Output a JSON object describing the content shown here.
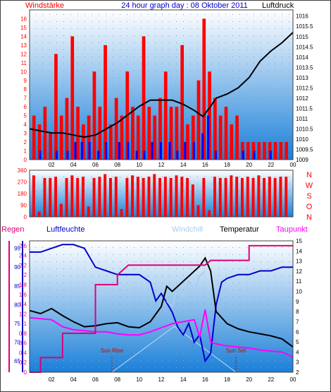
{
  "page_title": "24 hour graph day : 08 Oktober 2011",
  "colors": {
    "frame": "#404040",
    "wind_bar": "#ff0000",
    "gust_bar": "#0000ff",
    "pressure": "#000000",
    "humidity": "#0000cc",
    "windchill": "#aaccee",
    "temperature": "#000000",
    "dewpoint": "#ff00ff",
    "rain": "#dd0077",
    "sun": "#bb1100",
    "bg_top": "#ffffff",
    "bg_bottom": "#1a7fd8"
  },
  "chart_data": [
    {
      "type": "bar+line",
      "title": "24 hour graph day : 08 Oktober 2011",
      "left_axis_label": "Windstärke",
      "right_axis_label": "Luftdruck",
      "x_ticks": [
        "02",
        "04",
        "06",
        "08",
        "10",
        "12",
        "14",
        "16",
        "18",
        "20",
        "22",
        "00"
      ],
      "x_range_hours": [
        0,
        24
      ],
      "left_ticks": [
        "0",
        "1",
        "2",
        "3",
        "4",
        "5",
        "6",
        "7",
        "8",
        "9",
        "10",
        "11",
        "12",
        "13",
        "14",
        "15",
        "16"
      ],
      "left_range": [
        0,
        17
      ],
      "right_ticks": [
        "1009",
        "1009.5",
        "1010",
        "1010.5",
        "1011",
        "1011.5",
        "1012",
        "1012.5",
        "1013",
        "1013.5",
        "1014",
        "1014.5",
        "1015",
        "1015.5",
        "1016"
      ],
      "right_range": [
        1009,
        1016.3
      ],
      "wind_series": {
        "name": "wind",
        "hours": [
          0.5,
          1.0,
          1.5,
          2.0,
          2.5,
          3.0,
          3.5,
          4.0,
          4.5,
          5.0,
          5.5,
          6.0,
          6.5,
          7.0,
          7.5,
          8.0,
          8.5,
          9.0,
          9.5,
          10.0,
          10.5,
          11.0,
          11.5,
          12.0,
          12.5,
          13.0,
          13.5,
          14.0,
          14.5,
          15.0,
          15.5,
          16.0,
          16.5,
          17.0,
          17.5,
          18.0,
          18.5,
          19.0,
          19.5,
          20.0,
          20.5,
          21.0,
          21.5,
          22.0,
          22.5,
          23.0,
          23.5
        ],
        "values": [
          5,
          4,
          6,
          3,
          12,
          5,
          7,
          14,
          6,
          4,
          5,
          10,
          6,
          13,
          4,
          7,
          5,
          10,
          6,
          5,
          14,
          6,
          5,
          7,
          10,
          6,
          6,
          13,
          4,
          5,
          9,
          16,
          10,
          7,
          5,
          6,
          4,
          5,
          2,
          2,
          2,
          2,
          2,
          2,
          2,
          2,
          2
        ]
      },
      "gust_series": {
        "name": "gust",
        "hours": [
          1.0,
          2.5,
          3.5,
          4.2,
          4.8,
          5.5,
          6.3,
          7.0,
          8.2,
          9.0,
          9.8,
          10.5,
          11.2,
          12.0,
          12.8,
          13.5,
          14.2,
          15.0,
          15.8,
          16.3,
          17.0,
          19.5,
          20.5,
          22.0
        ],
        "values": [
          1,
          1,
          1,
          2,
          2,
          2,
          1,
          2,
          2,
          2,
          1,
          1,
          2,
          2,
          2,
          1,
          2,
          2,
          3,
          5,
          1,
          1,
          1,
          1
        ]
      },
      "pressure_series": {
        "name": "pressure",
        "hours": [
          0,
          1,
          2,
          3,
          4,
          5,
          6,
          7,
          8,
          9,
          10,
          11,
          12,
          13,
          14,
          15,
          15.8,
          16.5,
          17,
          18,
          19,
          20,
          21,
          22,
          23,
          24
        ],
        "values": [
          1010.5,
          1010.4,
          1010.3,
          1010.3,
          1010.2,
          1010.1,
          1010.2,
          1010.5,
          1010.8,
          1011.2,
          1011.6,
          1011.9,
          1011.9,
          1011.9,
          1011.7,
          1011.4,
          1011.1,
          1011.6,
          1012.0,
          1012.2,
          1012.5,
          1013.0,
          1013.8,
          1014.3,
          1014.7,
          1015.2
        ]
      }
    },
    {
      "type": "bar",
      "title": "",
      "left_ticks": [
        "0",
        "90",
        "180",
        "270",
        "360"
      ],
      "left_range": [
        0,
        360
      ],
      "right_labels": [
        "N",
        "W",
        "S",
        "O",
        "N"
      ],
      "direction_series": {
        "name": "direction",
        "hours": [
          0.5,
          1.0,
          1.5,
          2.0,
          2.5,
          3.0,
          3.5,
          4.0,
          4.5,
          5.0,
          5.5,
          6.0,
          6.5,
          7.0,
          7.5,
          8.0,
          8.5,
          9.0,
          9.5,
          10.0,
          10.5,
          11.0,
          11.5,
          12.0,
          12.5,
          13.0,
          13.5,
          14.0,
          14.5,
          15.0,
          15.5,
          16.0,
          16.5,
          17.0,
          17.5,
          18.0,
          18.5,
          19.0,
          19.5,
          20.0,
          20.5,
          21.0,
          21.5,
          22.0,
          22.5,
          23.0,
          23.5
        ],
        "values": [
          320,
          40,
          300,
          300,
          310,
          100,
          300,
          320,
          300,
          310,
          80,
          300,
          310,
          330,
          300,
          310,
          60,
          300,
          320,
          310,
          300,
          310,
          330,
          300,
          310,
          300,
          320,
          310,
          300,
          250,
          90,
          300,
          50,
          310,
          300,
          300,
          320,
          310,
          300,
          310,
          300,
          320,
          300,
          310,
          300,
          310,
          310
        ]
      }
    },
    {
      "type": "line",
      "title": "",
      "legend": [
        "Regen",
        "Luftfeuchte",
        "Windchill",
        "Temperatur",
        "Taupunkt"
      ],
      "humidity_ticks": [
        "65",
        "70",
        "75",
        "80",
        "85",
        "90",
        "95"
      ],
      "humidity_range": [
        62,
        97
      ],
      "rain_ticks": [
        "0",
        "0.2",
        "0.4",
        "0.6",
        "0.8",
        "1",
        "1.2",
        "1.4",
        "1.6",
        "1.8",
        "2",
        "2.2",
        "2.4",
        "2.6"
      ],
      "rain_range": [
        0,
        2.7
      ],
      "temp_ticks": [
        "2",
        "3",
        "4",
        "5",
        "6",
        "7",
        "8",
        "9",
        "10",
        "11",
        "12",
        "13",
        "14",
        "15"
      ],
      "temp_range": [
        2,
        15
      ],
      "sun_rise_label": "Sun Rise",
      "sun_set_label": "Sun Set",
      "sun_rise_hour": 7.5,
      "sun_set_hour": 18.8,
      "humidity_series": {
        "name": "Luftfeuchte",
        "hours": [
          0,
          1,
          2,
          3,
          4,
          5,
          6,
          7,
          8,
          9,
          10,
          11,
          11.5,
          12,
          13,
          13.5,
          14,
          14.5,
          15,
          15.5,
          16,
          16.5,
          17,
          17.5,
          18,
          19,
          20,
          21,
          22,
          23,
          24
        ],
        "values": [
          94,
          94,
          95,
          96,
          96,
          95,
          90,
          89,
          88,
          88,
          88,
          86,
          81,
          83,
          78,
          74,
          72,
          75,
          70,
          72,
          65,
          67,
          80,
          86,
          87,
          88,
          88,
          89,
          89,
          90,
          90
        ]
      },
      "temperature_series": {
        "name": "Temperatur",
        "hours": [
          0,
          1,
          2,
          3,
          4,
          5,
          6,
          7,
          8,
          9,
          10,
          11,
          12,
          12.5,
          13,
          14,
          14.5,
          15,
          15.5,
          16,
          16.5,
          17,
          18,
          19,
          20,
          21,
          22,
          23,
          24
        ],
        "values": [
          8.1,
          7.8,
          8.3,
          7.6,
          7.0,
          6.5,
          6.6,
          6.8,
          6.9,
          6.5,
          6.4,
          7.0,
          8.5,
          10.5,
          10.0,
          11.0,
          11.5,
          12.0,
          12.5,
          13.3,
          12.0,
          8.0,
          6.8,
          6.3,
          6.0,
          5.8,
          5.6,
          5.3,
          4.5
        ]
      },
      "windchill_series": {
        "name": "Windchill",
        "hours": [
          12.5,
          13,
          13.5,
          14,
          14.5,
          15,
          15.5,
          16
        ],
        "values": [
          9.0,
          8.5,
          10.5,
          9.5,
          11.0,
          10.0,
          11.5,
          12.0
        ]
      },
      "dewpoint_series": {
        "name": "Taupunkt",
        "hours": [
          0,
          1,
          2,
          3,
          4,
          5,
          6,
          7,
          8,
          9,
          10,
          11,
          12,
          13,
          14,
          15,
          15.5,
          16,
          16.5,
          17,
          18,
          19,
          20,
          21,
          22,
          23,
          24
        ],
        "values": [
          7.4,
          7.3,
          7.2,
          6.5,
          6.2,
          6.1,
          6.0,
          6.0,
          5.8,
          5.7,
          5.7,
          6.0,
          6.4,
          6.8,
          7.0,
          7.2,
          5.5,
          8.2,
          5.0,
          4.8,
          4.6,
          4.5,
          4.4,
          4.2,
          4.1,
          4.0,
          3.5
        ]
      },
      "rain_series": {
        "name": "Regen",
        "hours": [
          0,
          1,
          1,
          2,
          3,
          3,
          4,
          5,
          6,
          6,
          7,
          8,
          8,
          9,
          10,
          11,
          12,
          13,
          14,
          15,
          16,
          16.5,
          17,
          18,
          19,
          20,
          20,
          21,
          22,
          23,
          24
        ],
        "values": [
          0,
          0,
          0.3,
          0.3,
          0.3,
          0.8,
          0.8,
          0.8,
          0.8,
          1.8,
          1.8,
          1.8,
          2.0,
          2.2,
          2.2,
          2.2,
          2.2,
          2.2,
          2.2,
          2.2,
          2.2,
          2.3,
          2.3,
          2.3,
          2.3,
          2.3,
          2.6,
          2.6,
          2.6,
          2.6,
          2.6
        ]
      }
    }
  ]
}
